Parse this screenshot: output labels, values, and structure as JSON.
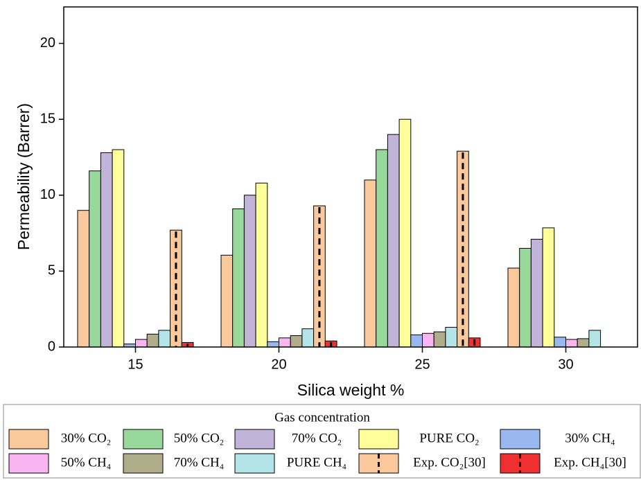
{
  "chart_data": {
    "type": "bar",
    "x_label": "Silica weight %",
    "y_label": "Permeability (Barrer)",
    "legend_title": "Gas concentration",
    "categories": [
      "15",
      "20",
      "25",
      "30"
    ],
    "ylim": [
      0,
      22.4
    ],
    "yticks": [
      0,
      5,
      10,
      15,
      20
    ],
    "series": [
      {
        "name": "30% CO₂",
        "color": "#f9c89b",
        "values": [
          9,
          6.05,
          11,
          5.2
        ]
      },
      {
        "name": "50% CO₂",
        "color": "#98d89b",
        "values": [
          11.6,
          9.1,
          13,
          6.5
        ]
      },
      {
        "name": "70% CO₂",
        "color": "#c2b3d8",
        "values": [
          12.8,
          10,
          14,
          7.1
        ]
      },
      {
        "name": "PURE CO₂",
        "color": "#ffff99",
        "values": [
          13,
          10.8,
          15,
          7.85
        ]
      },
      {
        "name": "30% CH₄",
        "color": "#9ab8f0",
        "values": [
          0.2,
          0.35,
          0.8,
          0.65
        ]
      },
      {
        "name": "50% CH₄",
        "color": "#f9b5f2",
        "values": [
          0.5,
          0.6,
          0.9,
          0.5
        ]
      },
      {
        "name": "70% CH₄",
        "color": "#b0ad8a",
        "values": [
          0.85,
          0.75,
          1.0,
          0.55
        ]
      },
      {
        "name": "PURE CH₄",
        "color": "#b3e5e8",
        "values": [
          1.1,
          1.2,
          1.3,
          1.1
        ]
      },
      {
        "name": "Exp. CO₂[30]",
        "color": "#f9c89b",
        "hatch": "dashed",
        "values": [
          7.7,
          9.3,
          12.9,
          null
        ]
      },
      {
        "name": "Exp. CH₄[30]",
        "color": "#f03030",
        "hatch": "dashed",
        "values": [
          0.3,
          0.4,
          0.6,
          null
        ]
      }
    ]
  }
}
